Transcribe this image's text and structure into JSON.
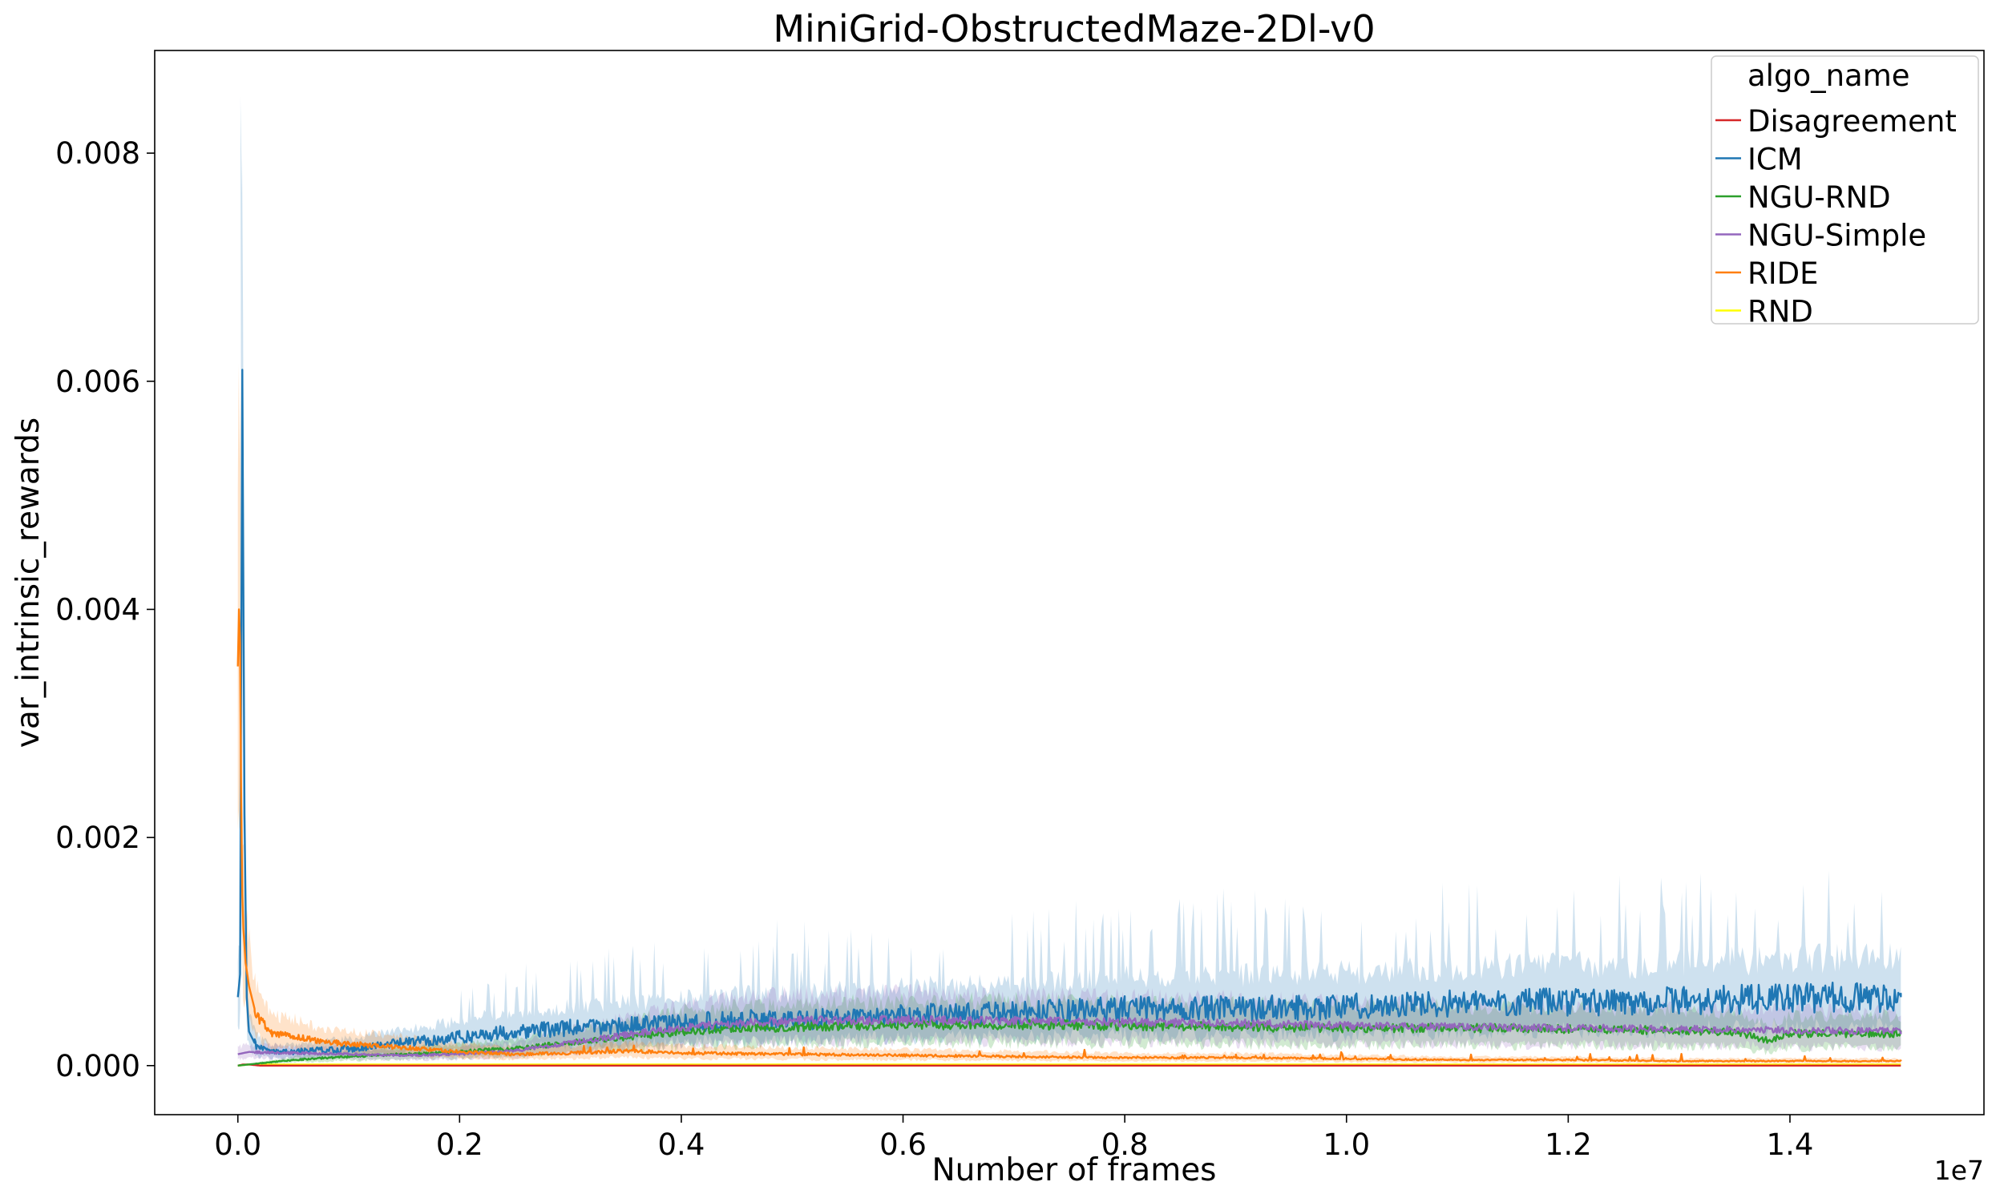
{
  "chart_data": {
    "type": "line",
    "title": "MiniGrid-ObstructedMaze-2Dl-v0",
    "xlabel": "Number of frames",
    "ylabel": "var_intrinsic_rewards",
    "x_offset_label": "1e7",
    "xlim": [
      -750000,
      15750000
    ],
    "ylim": [
      -0.00043,
      0.0089
    ],
    "xticks": [
      0,
      2000000,
      4000000,
      6000000,
      8000000,
      10000000,
      12000000,
      14000000
    ],
    "xtick_labels": [
      "0.0",
      "0.2",
      "0.4",
      "0.6",
      "0.8",
      "1.0",
      "1.2",
      "1.4"
    ],
    "yticks": [
      0,
      0.002,
      0.004,
      0.006,
      0.008
    ],
    "ytick_labels": [
      "0.000",
      "0.002",
      "0.004",
      "0.006",
      "0.008"
    ],
    "grid": false,
    "legend": {
      "title": "algo_name",
      "placement": "top-right"
    },
    "series": [
      {
        "name": "Disagreement",
        "color": "#d62728",
        "x": [
          0,
          50000,
          100000,
          200000,
          500000,
          1000000,
          15000000
        ],
        "y": [
          0.0,
          1e-05,
          1e-05,
          0.0,
          0.0,
          0.0,
          0.0
        ],
        "band": [
          0.0,
          2e-05
        ]
      },
      {
        "name": "ICM",
        "color": "#1f77b4",
        "x": [
          0,
          20000,
          40000,
          60000,
          80000,
          100000,
          150000,
          200000,
          300000,
          500000,
          1000000,
          1500000,
          2000000,
          2500000,
          3000000,
          3500000,
          4000000,
          4500000,
          5000000,
          5500000,
          6000000,
          6500000,
          7000000,
          7500000,
          8000000,
          8500000,
          9000000,
          9500000,
          10000000,
          10500000,
          11000000,
          11500000,
          12000000,
          12500000,
          13000000,
          13500000,
          14000000,
          14500000,
          15000000
        ],
        "y": [
          0.0006,
          0.0008,
          0.0061,
          0.0022,
          0.0006,
          0.0003,
          0.0002,
          0.00015,
          0.00012,
          0.00012,
          0.00015,
          0.0002,
          0.00025,
          0.0003,
          0.00033,
          0.00035,
          0.00037,
          0.0004,
          0.0004,
          0.00042,
          0.00044,
          0.00045,
          0.00046,
          0.00048,
          0.0005,
          0.0005,
          0.0005,
          0.00051,
          0.00052,
          0.00053,
          0.00055,
          0.00055,
          0.00056,
          0.00056,
          0.00057,
          0.00058,
          0.00059,
          0.0006,
          0.0006
        ],
        "band": [
          0.00025,
          0.0009
        ],
        "band_peak": 0.0085
      },
      {
        "name": "NGU-RND",
        "color": "#2ca02c",
        "x": [
          0,
          500000,
          1000000,
          1500000,
          2000000,
          2500000,
          3000000,
          3500000,
          4000000,
          4500000,
          5000000,
          6000000,
          7000000,
          8000000,
          9000000,
          10000000,
          11000000,
          12000000,
          13000000,
          13500000,
          13800000,
          14000000,
          15000000
        ],
        "y": [
          0.0,
          5e-05,
          8e-05,
          0.0001,
          0.00012,
          0.00015,
          0.0002,
          0.00025,
          0.0003,
          0.00033,
          0.00034,
          0.00036,
          0.00036,
          0.00035,
          0.00034,
          0.00033,
          0.00033,
          0.00032,
          0.00031,
          0.0003,
          0.00022,
          0.00028,
          0.00028
        ],
        "band": [
          0.0002,
          0.00045
        ]
      },
      {
        "name": "NGU-Simple",
        "color": "#9467bd",
        "x": [
          0,
          100000,
          500000,
          1000000,
          1500000,
          2000000,
          2500000,
          3000000,
          3500000,
          4000000,
          4500000,
          5000000,
          5500000,
          6000000,
          7000000,
          8000000,
          9000000,
          10000000,
          11000000,
          12000000,
          13000000,
          14000000,
          15000000
        ],
        "y": [
          0.0001,
          0.00012,
          0.00011,
          0.0001,
          9e-05,
          0.0001,
          0.00013,
          0.0002,
          0.00027,
          0.00033,
          0.00037,
          0.00039,
          0.0004,
          0.0004,
          0.00039,
          0.00038,
          0.00037,
          0.00035,
          0.00034,
          0.00033,
          0.00032,
          0.00031,
          0.0003
        ],
        "band": [
          0.0002,
          0.00045
        ]
      },
      {
        "name": "RIDE",
        "color": "#ff7f0e",
        "x": [
          0,
          10000,
          20000,
          30000,
          40000,
          50000,
          70000,
          100000,
          150000,
          200000,
          300000,
          500000,
          700000,
          1000000,
          1500000,
          2000000,
          2500000,
          3000000,
          3500000,
          4000000,
          5000000,
          6000000,
          7000000,
          8000000,
          9000000,
          10000000,
          11000000,
          12000000,
          13000000,
          14000000,
          15000000
        ],
        "y": [
          0.0035,
          0.004,
          0.0037,
          0.0023,
          0.0015,
          0.0012,
          0.0009,
          0.0007,
          0.0005,
          0.0004,
          0.00028,
          0.00026,
          0.00022,
          0.00019,
          0.00016,
          0.00012,
          0.0001,
          0.00011,
          0.00013,
          0.00011,
          0.0001,
          9e-05,
          8e-05,
          7e-05,
          7e-05,
          6e-05,
          5e-05,
          5e-05,
          4e-05,
          4e-05,
          4e-05
        ],
        "band": [
          0.0,
          0.0003
        ]
      },
      {
        "name": "RND",
        "color": "#ffff00",
        "x": [
          0,
          100000,
          500000,
          1000000,
          5000000,
          10000000,
          15000000
        ],
        "y": [
          0.0,
          1e-05,
          1e-05,
          1e-05,
          1e-05,
          1e-05,
          1e-05
        ],
        "band": [
          0.0,
          2e-05
        ]
      }
    ]
  }
}
